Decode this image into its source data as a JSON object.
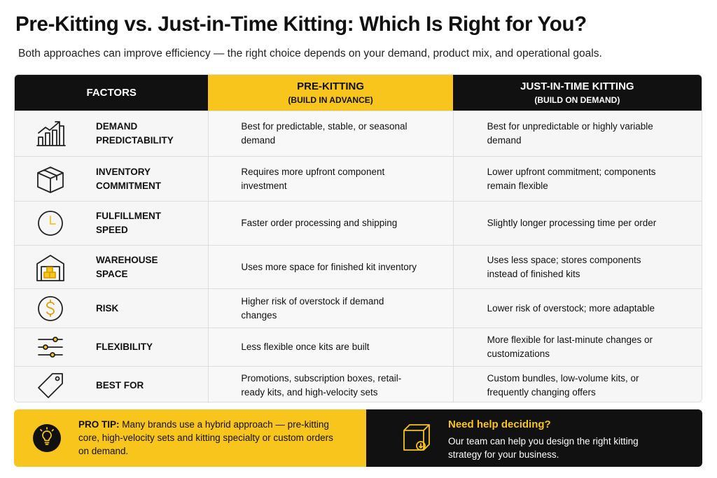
{
  "header": {
    "title": "Pre-Kitting vs. Just-in-Time Kitting: Which Is Right for You?",
    "subtitle": "Both approaches can improve efficiency — the right choice depends on your demand, product mix, and operational goals."
  },
  "table": {
    "columns": [
      {
        "label": "FACTORS"
      },
      {
        "label": "PRE-KITTING",
        "sublabel": "(BUILD IN ADVANCE)"
      },
      {
        "label": "JUST-IN-TIME KITTING",
        "sublabel": "(BUILD ON DEMAND)"
      }
    ],
    "rows": [
      {
        "factor": "DEMAND PREDICTABILITY",
        "pre_kitting": "Best for predictable, stable, or seasonal demand",
        "just_in_time": "Best for unpredictable or highly variable demand"
      },
      {
        "factor": "INVENTORY COMMITMENT",
        "pre_kitting": "Requires more upfront component investment",
        "just_in_time": "Lower upfront commitment; components remain flexible"
      },
      {
        "factor": "FULFILLMENT SPEED",
        "pre_kitting": "Faster order processing and shipping",
        "just_in_time": "Slightly longer processing time per order"
      },
      {
        "factor": "WAREHOUSE SPACE",
        "pre_kitting": "Uses more space for finished kit inventory",
        "just_in_time": "Uses less space; stores components instead of finished kits"
      },
      {
        "factor": "RISK",
        "pre_kitting": "Higher risk of overstock if demand changes",
        "just_in_time": "Lower risk of overstock; more adaptable"
      },
      {
        "factor": "FLEXIBILITY",
        "pre_kitting": "Less flexible once kits are built",
        "just_in_time": "More flexible for last-minute changes or customizations"
      },
      {
        "factor": "BEST FOR",
        "pre_kitting": "Promotions, subscription boxes, retail-ready kits, and high-velocity sets",
        "just_in_time": "Custom bundles, low-volume kits, or frequently changing offers"
      }
    ]
  },
  "footer": {
    "tip": {
      "label": "PRO TIP:",
      "text": "Many brands use a hybrid approach — pre-kitting core, high-velocity sets and kitting specialty or custom orders on demand."
    },
    "cta": {
      "title": "Need help deciding?",
      "text": "Our team can help you design the right kitting strategy for your business."
    }
  }
}
